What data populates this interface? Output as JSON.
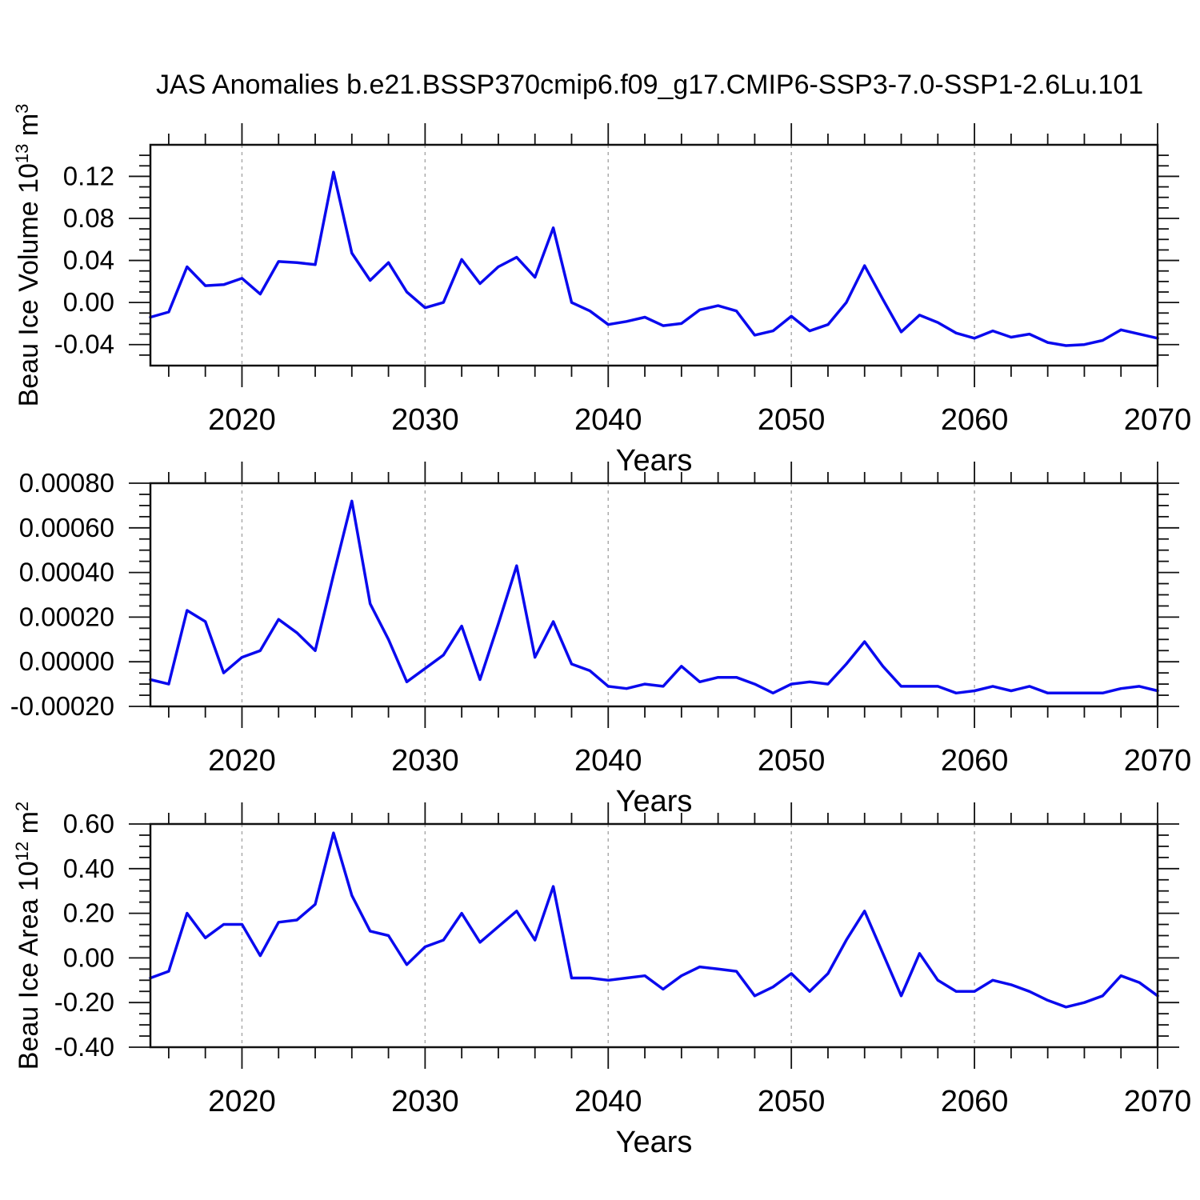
{
  "title": "JAS Anomalies b.e21.BSSP370cmip6.f09_g17.CMIP6-SSP3-7.0-SSP1-2.6Lu.101",
  "line_color": "#0a0aee",
  "grid_color": "#ababab",
  "axis_color": "#111111",
  "years": [
    2015,
    2016,
    2017,
    2018,
    2019,
    2020,
    2021,
    2022,
    2023,
    2024,
    2025,
    2026,
    2027,
    2028,
    2029,
    2030,
    2031,
    2032,
    2033,
    2034,
    2035,
    2036,
    2037,
    2038,
    2039,
    2040,
    2041,
    2042,
    2043,
    2044,
    2045,
    2046,
    2047,
    2048,
    2049,
    2050,
    2051,
    2052,
    2053,
    2054,
    2055,
    2056,
    2057,
    2058,
    2059,
    2060,
    2061,
    2062,
    2063,
    2064,
    2065,
    2066,
    2067,
    2068,
    2069,
    2070
  ],
  "chart_data": [
    {
      "type": "line",
      "id": "ice-volume",
      "title": "",
      "xlabel": "Years",
      "ylabel_parts": [
        {
          "t": "Beau Ice Volume 10"
        },
        {
          "sup": "13"
        },
        {
          "t": " m"
        },
        {
          "sup": "3"
        }
      ],
      "xlim": [
        2015,
        2070
      ],
      "ylim": [
        -0.06,
        0.15
      ],
      "grid": "vertical-dashed-at-decades",
      "legend_position": "none",
      "gridlines_x": [
        2020,
        2030,
        2040,
        2050,
        2060
      ],
      "xticks": [
        2020,
        2030,
        2040,
        2050,
        2060,
        2070
      ],
      "xtick_labels": [
        "2020",
        "2030",
        "2040",
        "2050",
        "2060",
        "2070"
      ],
      "x_minor_step": 2,
      "yticks": [
        -0.04,
        0.0,
        0.04,
        0.08,
        0.12
      ],
      "ytick_labels": [
        "-0.04",
        "0.00",
        "0.04",
        "0.08",
        "0.12"
      ],
      "y_minor_step": 0.01,
      "values": [
        -0.014,
        -0.009,
        0.034,
        0.016,
        0.017,
        0.023,
        0.008,
        0.039,
        0.038,
        0.036,
        0.124,
        0.047,
        0.021,
        0.038,
        0.01,
        -0.005,
        0.0,
        0.041,
        0.018,
        0.034,
        0.043,
        0.024,
        0.071,
        0.0,
        -0.008,
        -0.021,
        -0.018,
        -0.014,
        -0.022,
        -0.02,
        -0.007,
        -0.003,
        -0.008,
        -0.031,
        -0.027,
        -0.013,
        -0.027,
        -0.021,
        0.0,
        0.035,
        0.003,
        -0.028,
        -0.012,
        -0.019,
        -0.029,
        -0.034,
        -0.027,
        -0.033,
        -0.03,
        -0.038,
        -0.041,
        -0.04,
        -0.036,
        -0.026,
        -0.03,
        -0.034
      ]
    },
    {
      "type": "line",
      "id": "middle",
      "title": "",
      "xlabel": "Years",
      "ylabel_parts": [],
      "xlim": [
        2015,
        2070
      ],
      "ylim": [
        -0.0002,
        0.0008
      ],
      "grid": "vertical-dashed-at-decades",
      "legend_position": "none",
      "gridlines_x": [
        2020,
        2030,
        2040,
        2050,
        2060
      ],
      "xticks": [
        2020,
        2030,
        2040,
        2050,
        2060,
        2070
      ],
      "xtick_labels": [
        "2020",
        "2030",
        "2040",
        "2050",
        "2060",
        "2070"
      ],
      "x_minor_step": 2,
      "yticks": [
        -0.0002,
        0.0,
        0.0002,
        0.0004,
        0.0006,
        0.0008
      ],
      "ytick_labels": [
        "-0.00020",
        "0.00000",
        "0.00020",
        "0.00040",
        "0.00060",
        "0.00080"
      ],
      "y_minor_step": 5e-05,
      "values": [
        -8e-05,
        -0.0001,
        0.00023,
        0.00018,
        -5e-05,
        2e-05,
        5e-05,
        0.00019,
        0.00013,
        5e-05,
        0.00039,
        0.00072,
        0.00026,
        0.0001,
        -9e-05,
        -3e-05,
        3e-05,
        0.00016,
        -8e-05,
        0.00017,
        0.00043,
        2e-05,
        0.00018,
        -1e-05,
        -4e-05,
        -0.00011,
        -0.00012,
        -0.0001,
        -0.00011,
        -2e-05,
        -9e-05,
        -7e-05,
        -7e-05,
        -0.0001,
        -0.00014,
        -0.0001,
        -9e-05,
        -0.0001,
        -1e-05,
        9e-05,
        -2e-05,
        -0.00011,
        -0.00011,
        -0.00011,
        -0.00014,
        -0.00013,
        -0.00011,
        -0.00013,
        -0.00011,
        -0.00014,
        -0.00014,
        -0.00014,
        -0.00014,
        -0.00012,
        -0.00011,
        -0.00013
      ]
    },
    {
      "type": "line",
      "id": "ice-area",
      "title": "",
      "xlabel": "Years",
      "ylabel_parts": [
        {
          "t": "Beau Ice Area 10"
        },
        {
          "sup": "12"
        },
        {
          "t": " m"
        },
        {
          "sup": "2"
        }
      ],
      "xlim": [
        2015,
        2070
      ],
      "ylim": [
        -0.4,
        0.6
      ],
      "grid": "vertical-dashed-at-decades",
      "legend_position": "none",
      "gridlines_x": [
        2020,
        2030,
        2040,
        2050,
        2060
      ],
      "xticks": [
        2020,
        2030,
        2040,
        2050,
        2060,
        2070
      ],
      "xtick_labels": [
        "2020",
        "2030",
        "2040",
        "2050",
        "2060",
        "2070"
      ],
      "x_minor_step": 2,
      "yticks": [
        -0.4,
        -0.2,
        0.0,
        0.2,
        0.4,
        0.6
      ],
      "ytick_labels": [
        "-0.40",
        "-0.20",
        "0.00",
        "0.20",
        "0.40",
        "0.60"
      ],
      "y_minor_step": 0.05,
      "values": [
        -0.09,
        -0.06,
        0.2,
        0.09,
        0.15,
        0.15,
        0.01,
        0.16,
        0.17,
        0.24,
        0.56,
        0.28,
        0.12,
        0.1,
        -0.03,
        0.05,
        0.08,
        0.2,
        0.07,
        0.14,
        0.21,
        0.08,
        0.32,
        -0.09,
        -0.09,
        -0.1,
        -0.09,
        -0.08,
        -0.14,
        -0.08,
        -0.04,
        -0.05,
        -0.06,
        -0.17,
        -0.13,
        -0.07,
        -0.15,
        -0.07,
        0.08,
        0.21,
        0.02,
        -0.17,
        0.02,
        -0.1,
        -0.15,
        -0.15,
        -0.1,
        -0.12,
        -0.15,
        -0.19,
        -0.22,
        -0.2,
        -0.17,
        -0.08,
        -0.11,
        -0.17
      ]
    }
  ]
}
